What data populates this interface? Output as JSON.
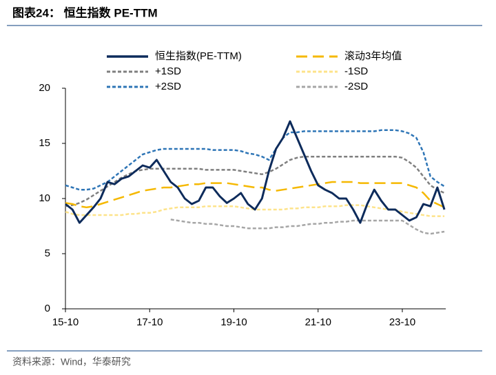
{
  "chart_data": {
    "type": "line",
    "title": "图表24： 恒生指数 PE-TTM",
    "source": "资料来源：Wind，华泰研究",
    "categories": [
      "15-10",
      null,
      null,
      null,
      null,
      null,
      null,
      null,
      null,
      null,
      null,
      null,
      "17-10",
      null,
      null,
      null,
      null,
      null,
      null,
      null,
      null,
      null,
      null,
      null,
      "19-10",
      null,
      null,
      null,
      null,
      null,
      null,
      null,
      null,
      null,
      null,
      null,
      "21-10",
      null,
      null,
      null,
      null,
      null,
      null,
      null,
      null,
      null,
      null,
      null,
      "23-10",
      null,
      null,
      null,
      null,
      null,
      null
    ],
    "ylim": [
      0,
      20
    ],
    "yticks": [
      0,
      5,
      10,
      15,
      20
    ],
    "grid": false,
    "series": [
      {
        "name": "恒生指数(PE-TTM)",
        "color": "#0d2b5b",
        "values": [
          9.5,
          9.0,
          7.8,
          8.5,
          9.2,
          10.0,
          11.5,
          11.3,
          11.8,
          12.0,
          12.5,
          13.0,
          12.8,
          13.5,
          12.5,
          11.5,
          11.0,
          10.0,
          9.5,
          9.8,
          11.0,
          11.0,
          10.2,
          9.6,
          10.0,
          10.5,
          9.5,
          9.0,
          10.0,
          12.5,
          14.5,
          15.5,
          17.0,
          15.5,
          14.0,
          12.5,
          11.2,
          10.8,
          10.5,
          10.0,
          10.0,
          9.0,
          7.8,
          9.5,
          10.8,
          9.8,
          9.0,
          9.0,
          8.5,
          8.0,
          8.3,
          9.5,
          9.3,
          11.0,
          9.0
        ]
      },
      {
        "name": "滚动3年均值",
        "color": "#f5b800",
        "values": [
          9.6,
          9.5,
          9.3,
          9.2,
          9.3,
          9.5,
          9.7,
          9.9,
          10.1,
          10.3,
          10.5,
          10.7,
          10.8,
          10.9,
          11.0,
          11.0,
          11.1,
          11.2,
          11.3,
          11.3,
          11.4,
          11.4,
          11.4,
          11.4,
          11.3,
          11.2,
          11.1,
          11.0,
          11.0,
          10.8,
          10.7,
          10.8,
          10.9,
          11.0,
          11.1,
          11.2,
          11.3,
          11.4,
          11.5,
          11.5,
          11.5,
          11.5,
          11.4,
          11.4,
          11.4,
          11.4,
          11.4,
          11.4,
          11.4,
          11.2,
          11.0,
          10.5,
          9.8,
          9.5,
          9.2
        ]
      },
      {
        "name": "+1SD",
        "color": "#7f7f7f",
        "values": [
          9.3,
          9.4,
          9.6,
          9.9,
          10.3,
          10.7,
          11.1,
          11.5,
          11.9,
          12.2,
          12.5,
          12.6,
          12.7,
          12.7,
          12.7,
          12.7,
          12.7,
          12.7,
          12.7,
          12.7,
          12.6,
          12.6,
          12.6,
          12.6,
          12.6,
          12.5,
          12.4,
          12.3,
          12.2,
          12.4,
          12.7,
          13.1,
          13.5,
          13.7,
          13.8,
          13.8,
          13.8,
          13.8,
          13.8,
          13.8,
          13.8,
          13.8,
          13.8,
          13.8,
          13.8,
          13.8,
          13.8,
          13.8,
          13.7,
          13.3,
          12.8,
          12.0,
          11.2,
          10.8,
          10.5
        ]
      },
      {
        "name": "-1SD",
        "color": "#fde38a",
        "values": [
          8.8,
          8.6,
          8.5,
          8.5,
          8.5,
          8.5,
          8.5,
          8.5,
          8.5,
          8.6,
          8.6,
          8.7,
          8.7,
          8.8,
          9.0,
          9.1,
          9.2,
          9.2,
          9.2,
          9.2,
          9.3,
          9.3,
          9.3,
          9.3,
          9.3,
          9.2,
          9.1,
          9.0,
          9.0,
          9.0,
          9.0,
          9.0,
          9.1,
          9.1,
          9.2,
          9.2,
          9.2,
          9.3,
          9.3,
          9.3,
          9.4,
          9.4,
          9.4,
          9.3,
          9.2,
          9.1,
          9.0,
          9.0,
          8.8,
          8.7,
          8.6,
          8.5,
          8.4,
          8.4,
          8.4
        ]
      },
      {
        "name": "+2SD",
        "color": "#2e75b6",
        "values": [
          11.2,
          11.0,
          10.8,
          10.8,
          10.9,
          11.2,
          11.5,
          12.0,
          12.5,
          13.0,
          13.5,
          14.0,
          14.2,
          14.4,
          14.5,
          14.5,
          14.5,
          14.5,
          14.5,
          14.5,
          14.5,
          14.4,
          14.4,
          14.4,
          14.4,
          14.3,
          14.1,
          14.0,
          13.8,
          13.5,
          14.5,
          15.5,
          16.0,
          16.0,
          16.1,
          16.1,
          16.1,
          16.1,
          16.1,
          16.1,
          16.1,
          16.1,
          16.1,
          16.1,
          16.1,
          16.2,
          16.2,
          16.2,
          16.1,
          15.9,
          15.5,
          14.2,
          12.0,
          11.5,
          11.1
        ]
      },
      {
        "name": "-2SD",
        "color": "#a6a6a6",
        "values": [
          null,
          null,
          null,
          null,
          null,
          null,
          null,
          null,
          null,
          null,
          null,
          null,
          null,
          null,
          null,
          8.1,
          8.0,
          7.9,
          7.8,
          7.8,
          7.7,
          7.7,
          7.6,
          7.5,
          7.5,
          7.4,
          7.3,
          7.3,
          7.3,
          7.3,
          7.4,
          7.4,
          7.5,
          7.5,
          7.6,
          7.7,
          7.7,
          7.8,
          7.8,
          7.9,
          7.9,
          8.0,
          8.0,
          8.0,
          8.0,
          8.0,
          8.0,
          8.0,
          8.0,
          7.6,
          7.2,
          6.9,
          6.8,
          6.9,
          7.0
        ]
      }
    ]
  }
}
